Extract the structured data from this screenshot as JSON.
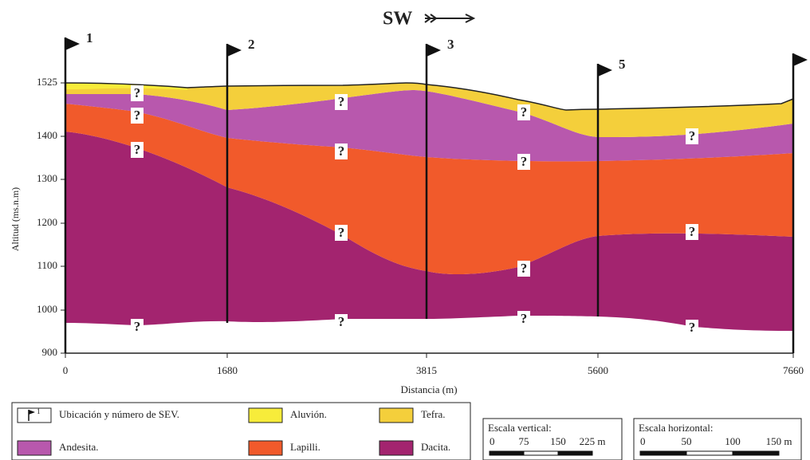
{
  "header": {
    "title": "SW"
  },
  "axes": {
    "y_label": "Altitud (ms.n.m)",
    "x_label": "Distancia (m)",
    "y_ticks": [
      "1525",
      "1400",
      "1300",
      "1200",
      "1100",
      "1000",
      "900"
    ],
    "x_ticks": [
      "0",
      "1680",
      "3815",
      "5600",
      "7660"
    ]
  },
  "sev_labels": [
    "1",
    "2",
    "3",
    "5"
  ],
  "question_marks": [
    "?",
    "?",
    "?",
    "?",
    "?",
    "?",
    "?",
    "?",
    "?",
    "?",
    "?",
    "?",
    "?",
    "?",
    "?"
  ],
  "legend": {
    "sev_icon_label": "1",
    "items": [
      "Ubicación y número de SEV.",
      "Aluvión.",
      "Tefra.",
      "Andesita.",
      "Lapilli.",
      "Dacita."
    ]
  },
  "scale_vertical": {
    "title": "Escala vertical:",
    "labels": [
      "0",
      "75",
      "150",
      "225 m"
    ]
  },
  "scale_horizontal": {
    "title": "Escala horizontal:",
    "labels": [
      "0",
      "50",
      "100",
      "150 m"
    ]
  }
}
